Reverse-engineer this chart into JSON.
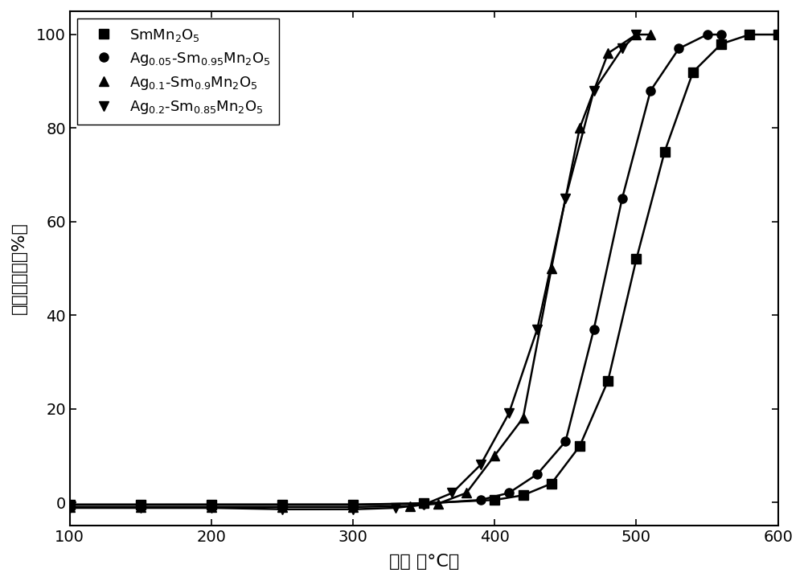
{
  "xlabel": "温度 （°C）",
  "ylabel": "碳烟转化率（%）",
  "xlim": [
    100,
    600
  ],
  "ylim": [
    -5,
    105
  ],
  "xticks": [
    100,
    200,
    300,
    400,
    500,
    600
  ],
  "yticks": [
    0,
    20,
    40,
    60,
    80,
    100
  ],
  "series": [
    {
      "label": "SmMn$_2$O$_5$",
      "marker": "s",
      "x_data": [
        100,
        150,
        200,
        250,
        300,
        350,
        400,
        420,
        440,
        460,
        480,
        500,
        520,
        540,
        560,
        580,
        600
      ],
      "y_data": [
        -0.5,
        -0.5,
        -0.5,
        -0.5,
        -0.5,
        -0.2,
        0.5,
        1.5,
        4.0,
        12.0,
        26.0,
        52.0,
        75.0,
        92.0,
        98.0,
        100.0,
        100.0
      ]
    },
    {
      "label": "Ag$_{0.05}$-Sm$_{0.95}$Mn$_2$O$_5$",
      "marker": "o",
      "x_data": [
        100,
        150,
        200,
        250,
        300,
        350,
        390,
        410,
        430,
        450,
        470,
        490,
        510,
        530,
        550,
        560
      ],
      "y_data": [
        -0.5,
        -0.5,
        -0.5,
        -0.5,
        -0.5,
        -0.3,
        0.5,
        2.0,
        6.0,
        13.0,
        37.0,
        65.0,
        88.0,
        97.0,
        100.0,
        100.0
      ]
    },
    {
      "label": "Ag$_{0.1}$-Sm$_{0.9}$Mn$_2$O$_5$",
      "marker": "^",
      "x_data": [
        100,
        150,
        200,
        250,
        300,
        340,
        360,
        380,
        400,
        420,
        440,
        460,
        480,
        500,
        510
      ],
      "y_data": [
        -1.0,
        -1.0,
        -1.0,
        -1.0,
        -1.0,
        -0.8,
        -0.3,
        2.0,
        10.0,
        18.0,
        50.0,
        80.0,
        96.0,
        100.0,
        100.0
      ]
    },
    {
      "label": "Ag$_{0.2}$-Sm$_{0.85}$Mn$_2$O$_5$",
      "marker": "v",
      "x_data": [
        100,
        150,
        200,
        250,
        300,
        330,
        350,
        370,
        390,
        410,
        430,
        450,
        470,
        490,
        500
      ],
      "y_data": [
        -1.2,
        -1.2,
        -1.2,
        -1.5,
        -1.5,
        -1.2,
        -0.5,
        2.0,
        8.0,
        19.0,
        37.0,
        65.0,
        88.0,
        97.0,
        100.0
      ]
    }
  ],
  "linewidth": 1.8,
  "markersize": 8,
  "legend_fontsize": 13,
  "axis_fontsize": 16,
  "tick_fontsize": 14
}
